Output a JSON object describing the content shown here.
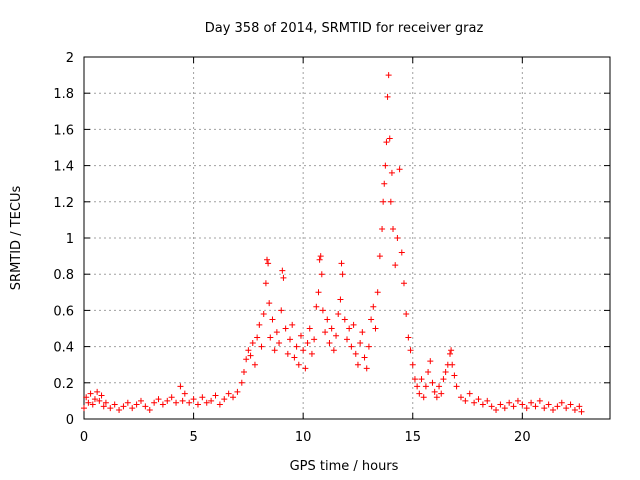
{
  "chart_data": {
    "type": "scatter",
    "title": "Day 358 of 2014, SRMTID for receiver graz",
    "xlabel": "GPS time / hours",
    "ylabel": "SRMTID / TECUs",
    "xlim": [
      0,
      24
    ],
    "ylim": [
      0,
      2
    ],
    "xticks": [
      0,
      5,
      10,
      15,
      20
    ],
    "xtick_labels": [
      "0",
      "5",
      "10",
      "15",
      "20"
    ],
    "yticks": [
      0,
      0.2,
      0.4,
      0.6,
      0.8,
      1,
      1.2,
      1.4,
      1.6,
      1.8,
      2
    ],
    "ytick_labels": [
      "0",
      "0.2",
      "0.4",
      "0.6",
      "0.8",
      "1",
      "1.2",
      "1.4",
      "1.6",
      "1.8",
      "2"
    ],
    "grid": true,
    "marker": "+",
    "series": [
      {
        "name": "SRMTID",
        "color": "#ff0000",
        "points": [
          [
            0.0,
            0.06
          ],
          [
            0.1,
            0.12
          ],
          [
            0.2,
            0.09
          ],
          [
            0.3,
            0.14
          ],
          [
            0.4,
            0.08
          ],
          [
            0.5,
            0.11
          ],
          [
            0.6,
            0.15
          ],
          [
            0.7,
            0.1
          ],
          [
            0.8,
            0.13
          ],
          [
            0.9,
            0.07
          ],
          [
            1.0,
            0.09
          ],
          [
            1.2,
            0.06
          ],
          [
            1.4,
            0.08
          ],
          [
            1.6,
            0.05
          ],
          [
            1.8,
            0.07
          ],
          [
            2.0,
            0.09
          ],
          [
            2.2,
            0.06
          ],
          [
            2.4,
            0.08
          ],
          [
            2.6,
            0.1
          ],
          [
            2.8,
            0.07
          ],
          [
            3.0,
            0.05
          ],
          [
            3.2,
            0.09
          ],
          [
            3.4,
            0.11
          ],
          [
            3.6,
            0.08
          ],
          [
            3.8,
            0.1
          ],
          [
            4.0,
            0.12
          ],
          [
            4.2,
            0.09
          ],
          [
            4.4,
            0.18
          ],
          [
            4.5,
            0.1
          ],
          [
            4.6,
            0.14
          ],
          [
            4.8,
            0.09
          ],
          [
            5.0,
            0.11
          ],
          [
            5.2,
            0.08
          ],
          [
            5.4,
            0.12
          ],
          [
            5.6,
            0.09
          ],
          [
            5.8,
            0.1
          ],
          [
            6.0,
            0.13
          ],
          [
            6.2,
            0.08
          ],
          [
            6.4,
            0.11
          ],
          [
            6.6,
            0.14
          ],
          [
            6.8,
            0.12
          ],
          [
            7.0,
            0.15
          ],
          [
            7.2,
            0.2
          ],
          [
            7.3,
            0.26
          ],
          [
            7.4,
            0.33
          ],
          [
            7.5,
            0.38
          ],
          [
            7.6,
            0.35
          ],
          [
            7.7,
            0.42
          ],
          [
            7.8,
            0.3
          ],
          [
            7.9,
            0.45
          ],
          [
            8.0,
            0.52
          ],
          [
            8.1,
            0.4
          ],
          [
            8.2,
            0.58
          ],
          [
            8.3,
            0.75
          ],
          [
            8.35,
            0.88
          ],
          [
            8.4,
            0.86
          ],
          [
            8.45,
            0.64
          ],
          [
            8.5,
            0.45
          ],
          [
            8.6,
            0.55
          ],
          [
            8.7,
            0.38
          ],
          [
            8.8,
            0.48
          ],
          [
            8.9,
            0.42
          ],
          [
            9.0,
            0.6
          ],
          [
            9.05,
            0.82
          ],
          [
            9.1,
            0.78
          ],
          [
            9.2,
            0.5
          ],
          [
            9.3,
            0.36
          ],
          [
            9.4,
            0.44
          ],
          [
            9.5,
            0.52
          ],
          [
            9.6,
            0.34
          ],
          [
            9.7,
            0.4
          ],
          [
            9.8,
            0.3
          ],
          [
            9.9,
            0.46
          ],
          [
            10.0,
            0.38
          ],
          [
            10.1,
            0.28
          ],
          [
            10.2,
            0.42
          ],
          [
            10.3,
            0.5
          ],
          [
            10.4,
            0.36
          ],
          [
            10.5,
            0.44
          ],
          [
            10.6,
            0.62
          ],
          [
            10.7,
            0.7
          ],
          [
            10.75,
            0.88
          ],
          [
            10.8,
            0.9
          ],
          [
            10.85,
            0.8
          ],
          [
            10.9,
            0.6
          ],
          [
            11.0,
            0.48
          ],
          [
            11.1,
            0.55
          ],
          [
            11.2,
            0.42
          ],
          [
            11.3,
            0.5
          ],
          [
            11.4,
            0.38
          ],
          [
            11.5,
            0.46
          ],
          [
            11.6,
            0.58
          ],
          [
            11.7,
            0.66
          ],
          [
            11.75,
            0.86
          ],
          [
            11.8,
            0.8
          ],
          [
            11.9,
            0.55
          ],
          [
            12.0,
            0.44
          ],
          [
            12.1,
            0.5
          ],
          [
            12.2,
            0.4
          ],
          [
            12.3,
            0.52
          ],
          [
            12.4,
            0.36
          ],
          [
            12.5,
            0.3
          ],
          [
            12.6,
            0.42
          ],
          [
            12.7,
            0.48
          ],
          [
            12.8,
            0.34
          ],
          [
            12.9,
            0.28
          ],
          [
            13.0,
            0.4
          ],
          [
            13.1,
            0.55
          ],
          [
            13.2,
            0.62
          ],
          [
            13.3,
            0.5
          ],
          [
            13.4,
            0.7
          ],
          [
            13.5,
            0.9
          ],
          [
            13.6,
            1.05
          ],
          [
            13.65,
            1.2
          ],
          [
            13.7,
            1.3
          ],
          [
            13.75,
            1.4
          ],
          [
            13.8,
            1.53
          ],
          [
            13.85,
            1.78
          ],
          [
            13.9,
            1.9
          ],
          [
            13.95,
            1.55
          ],
          [
            14.0,
            1.2
          ],
          [
            14.05,
            1.36
          ],
          [
            14.1,
            1.05
          ],
          [
            14.2,
            0.85
          ],
          [
            14.3,
            1.0
          ],
          [
            14.4,
            1.38
          ],
          [
            14.5,
            0.92
          ],
          [
            14.6,
            0.75
          ],
          [
            14.7,
            0.58
          ],
          [
            14.8,
            0.45
          ],
          [
            14.9,
            0.38
          ],
          [
            15.0,
            0.3
          ],
          [
            15.1,
            0.22
          ],
          [
            15.2,
            0.18
          ],
          [
            15.3,
            0.14
          ],
          [
            15.4,
            0.22
          ],
          [
            15.5,
            0.12
          ],
          [
            15.6,
            0.18
          ],
          [
            15.7,
            0.26
          ],
          [
            15.8,
            0.32
          ],
          [
            15.9,
            0.2
          ],
          [
            16.0,
            0.15
          ],
          [
            16.1,
            0.12
          ],
          [
            16.2,
            0.18
          ],
          [
            16.3,
            0.14
          ],
          [
            16.4,
            0.22
          ],
          [
            16.5,
            0.26
          ],
          [
            16.6,
            0.3
          ],
          [
            16.7,
            0.36
          ],
          [
            16.75,
            0.38
          ],
          [
            16.8,
            0.3
          ],
          [
            16.9,
            0.24
          ],
          [
            17.0,
            0.18
          ],
          [
            17.2,
            0.12
          ],
          [
            17.4,
            0.1
          ],
          [
            17.6,
            0.14
          ],
          [
            17.8,
            0.09
          ],
          [
            18.0,
            0.11
          ],
          [
            18.2,
            0.08
          ],
          [
            18.4,
            0.1
          ],
          [
            18.6,
            0.07
          ],
          [
            18.8,
            0.05
          ],
          [
            19.0,
            0.08
          ],
          [
            19.2,
            0.06
          ],
          [
            19.4,
            0.09
          ],
          [
            19.6,
            0.07
          ],
          [
            19.8,
            0.1
          ],
          [
            20.0,
            0.08
          ],
          [
            20.2,
            0.06
          ],
          [
            20.4,
            0.09
          ],
          [
            20.6,
            0.07
          ],
          [
            20.8,
            0.1
          ],
          [
            21.0,
            0.06
          ],
          [
            21.2,
            0.08
          ],
          [
            21.4,
            0.05
          ],
          [
            21.6,
            0.07
          ],
          [
            21.8,
            0.09
          ],
          [
            22.0,
            0.06
          ],
          [
            22.2,
            0.08
          ],
          [
            22.4,
            0.05
          ],
          [
            22.6,
            0.07
          ],
          [
            22.7,
            0.04
          ]
        ]
      }
    ]
  }
}
